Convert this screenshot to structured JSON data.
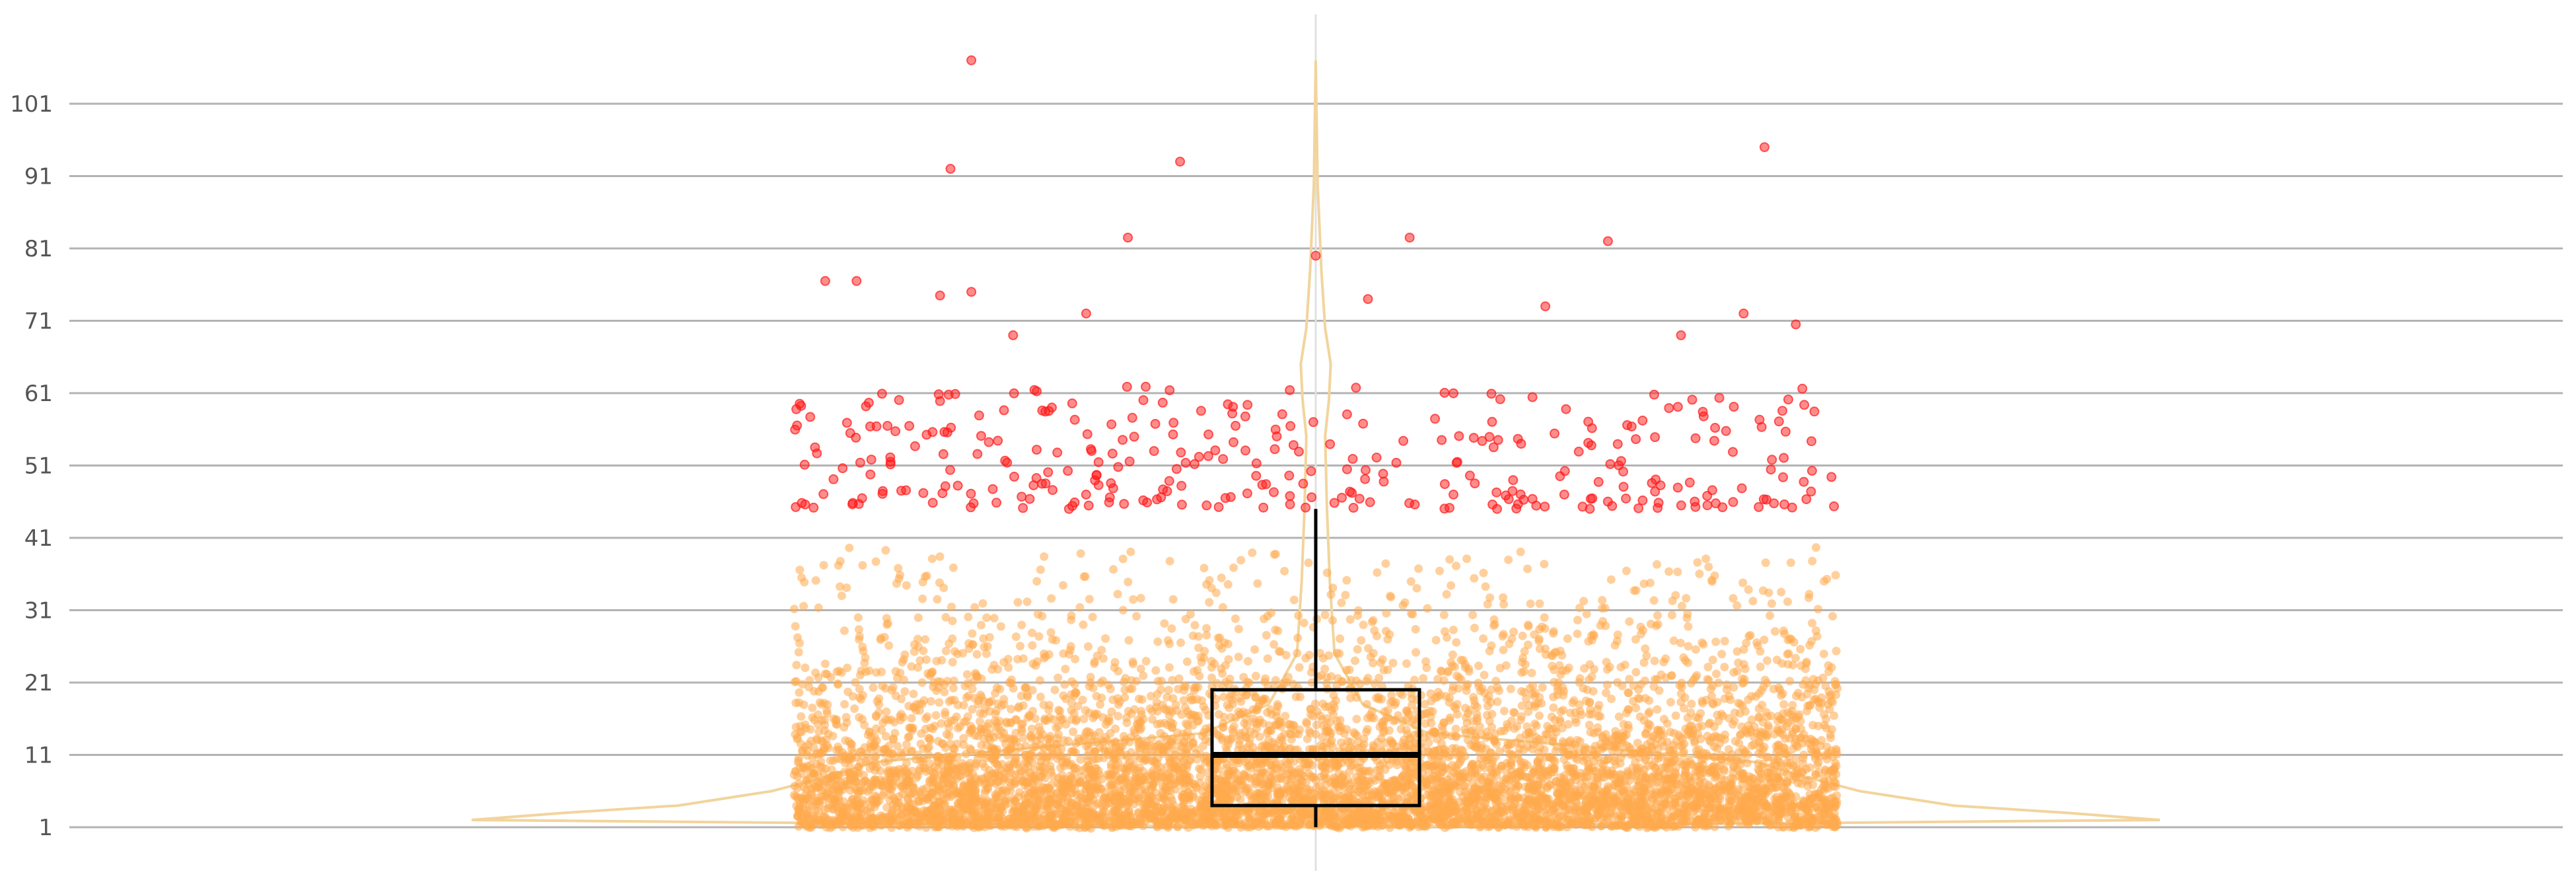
{
  "chart_data": {
    "type": "box-violin-jitter",
    "title": "",
    "xlabel": "",
    "ylabel": "",
    "y_ticks": [
      1,
      11,
      21,
      31,
      41,
      51,
      61,
      71,
      81,
      91,
      101
    ],
    "ylim": [
      -4,
      112
    ],
    "grid": "horizontal",
    "legend": "none",
    "box": {
      "whisker_low": 1,
      "q1": 4,
      "median": 11,
      "q3": 20,
      "whisker_high": 45
    },
    "violin_half_width_profile": [
      [
        1,
        0.0
      ],
      [
        2,
        0.9
      ],
      [
        3,
        0.8
      ],
      [
        4,
        0.68
      ],
      [
        6,
        0.58
      ],
      [
        8,
        0.52
      ],
      [
        10,
        0.47
      ],
      [
        12,
        0.3
      ],
      [
        14,
        0.12
      ],
      [
        18,
        0.05
      ],
      [
        25,
        0.02
      ],
      [
        35,
        0.015
      ],
      [
        45,
        0.012
      ],
      [
        55,
        0.01
      ],
      [
        60,
        0.014
      ],
      [
        65,
        0.016
      ],
      [
        70,
        0.01
      ],
      [
        78,
        0.006
      ],
      [
        90,
        0.002
      ],
      [
        107,
        0.0
      ]
    ],
    "jitter_range": [
      -0.5,
      0.5
    ],
    "outlier_threshold": 45,
    "core_point_count": 7000,
    "outlier_points": [
      [
        -0.33,
        107
      ],
      [
        -0.35,
        92
      ],
      [
        -0.13,
        93
      ],
      [
        0.43,
        95
      ],
      [
        -0.18,
        82.5
      ],
      [
        0.09,
        82.5
      ],
      [
        0.28,
        82
      ],
      [
        -0.22,
        72
      ],
      [
        0.0,
        80
      ],
      [
        -0.47,
        76.5
      ],
      [
        -0.44,
        76.5
      ],
      [
        -0.36,
        74.5
      ],
      [
        -0.33,
        75
      ],
      [
        0.46,
        70.5
      ],
      [
        0.35,
        69
      ],
      [
        0.22,
        73
      ],
      [
        0.41,
        72
      ],
      [
        -0.29,
        69
      ],
      [
        0.05,
        74
      ]
    ],
    "outlier_band": {
      "count": 330,
      "min": 45,
      "max": 62
    },
    "colors": {
      "points": "#ffa94d",
      "outliers": "#ff1a1a",
      "violin": "#f2d49c",
      "box": "#000000",
      "grid": "#b3b3b3",
      "center_line": "#e0e0e0"
    }
  }
}
